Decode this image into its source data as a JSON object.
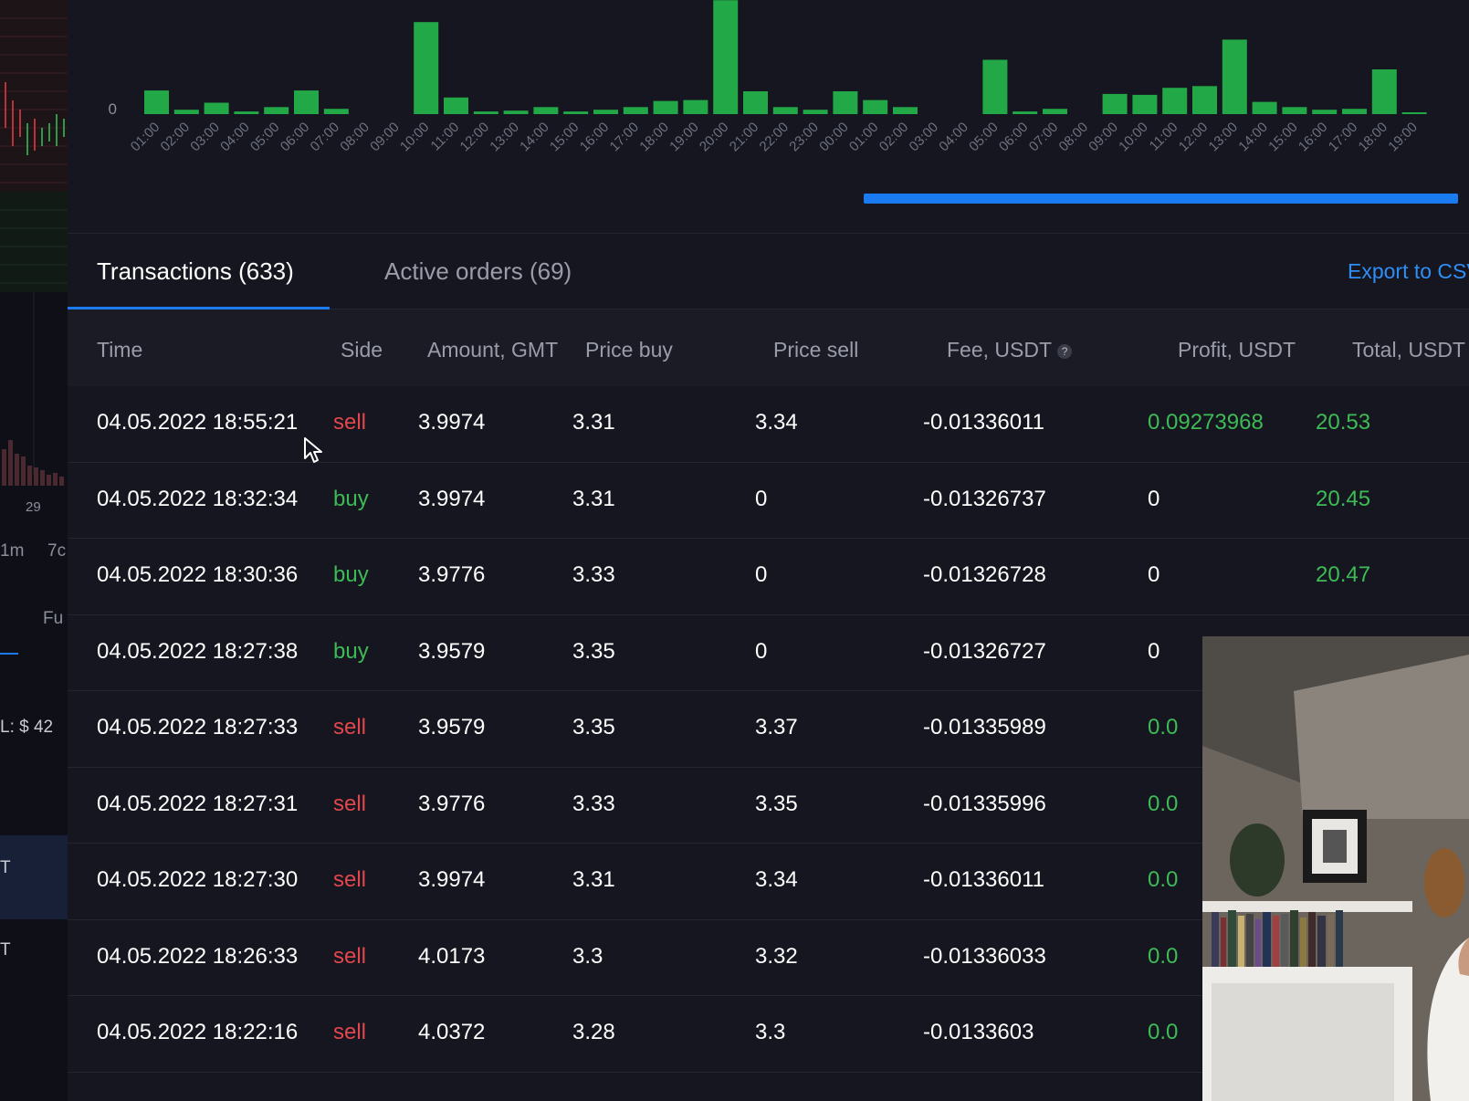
{
  "chart_data": {
    "type": "bar",
    "y_tick": "0",
    "color": "#23a847",
    "categories": [
      "01:00",
      "02:00",
      "03:00",
      "04:00",
      "05:00",
      "06:00",
      "07:00",
      "08:00",
      "09:00",
      "10:00",
      "11:00",
      "12:00",
      "13:00",
      "14:00",
      "15:00",
      "16:00",
      "17:00",
      "18:00",
      "19:00",
      "20:00",
      "21:00",
      "22:00",
      "23:00",
      "00:00",
      "01:00",
      "02:00",
      "03:00",
      "04:00",
      "05:00",
      "06:00",
      "07:00",
      "08:00",
      "09:00",
      "10:00",
      "11:00",
      "12:00",
      "13:00",
      "14:00",
      "15:00",
      "16:00",
      "17:00",
      "18:00",
      "19:00"
    ],
    "values": [
      27,
      5,
      13,
      3,
      8,
      27,
      6,
      0,
      0,
      105,
      19,
      3,
      4,
      8,
      3,
      5,
      8,
      15,
      16,
      130,
      26,
      8,
      5,
      26,
      16,
      8,
      0,
      0,
      62,
      3,
      6,
      0,
      23,
      22,
      30,
      32,
      85,
      14,
      8,
      5,
      6,
      51,
      1
    ]
  },
  "tabs": {
    "transactions": "Transactions (633)",
    "active_orders": "Active orders (69)",
    "export": "Export to CSV"
  },
  "table": {
    "headers": {
      "time": "Time",
      "side": "Side",
      "amount": "Amount, GMT",
      "price_buy": "Price buy",
      "price_sell": "Price sell",
      "fee": "Fee, USDT",
      "profit": "Profit, USDT",
      "total": "Total, USDT"
    },
    "fee_help": "?",
    "rows": [
      {
        "time": "04.05.2022 18:55:21",
        "side": "sell",
        "amount": "3.9974",
        "price_buy": "3.31",
        "price_sell": "3.34",
        "fee": "-0.01336011",
        "profit": "0.09273968",
        "total": "20.53"
      },
      {
        "time": "04.05.2022 18:32:34",
        "side": "buy",
        "amount": "3.9974",
        "price_buy": "3.31",
        "price_sell": "0",
        "fee": "-0.01326737",
        "profit": "0",
        "total": "20.45"
      },
      {
        "time": "04.05.2022 18:30:36",
        "side": "buy",
        "amount": "3.9776",
        "price_buy": "3.33",
        "price_sell": "0",
        "fee": "-0.01326728",
        "profit": "0",
        "total": "20.47"
      },
      {
        "time": "04.05.2022 18:27:38",
        "side": "buy",
        "amount": "3.9579",
        "price_buy": "3.35",
        "price_sell": "0",
        "fee": "-0.01326727",
        "profit": "0",
        "total": ""
      },
      {
        "time": "04.05.2022 18:27:33",
        "side": "sell",
        "amount": "3.9579",
        "price_buy": "3.35",
        "price_sell": "3.37",
        "fee": "-0.01335989",
        "profit": "0.0",
        "total": ""
      },
      {
        "time": "04.05.2022 18:27:31",
        "side": "sell",
        "amount": "3.9776",
        "price_buy": "3.33",
        "price_sell": "3.35",
        "fee": "-0.01335996",
        "profit": "0.0",
        "total": ""
      },
      {
        "time": "04.05.2022 18:27:30",
        "side": "sell",
        "amount": "3.9974",
        "price_buy": "3.31",
        "price_sell": "3.34",
        "fee": "-0.01336011",
        "profit": "0.0",
        "total": ""
      },
      {
        "time": "04.05.2022 18:26:33",
        "side": "sell",
        "amount": "4.0173",
        "price_buy": "3.3",
        "price_sell": "3.32",
        "fee": "-0.01336033",
        "profit": "0.0",
        "total": ""
      },
      {
        "time": "04.05.2022 18:22:16",
        "side": "sell",
        "amount": "4.0372",
        "price_buy": "3.28",
        "price_sell": "3.3",
        "fee": "-0.0133603",
        "profit": "0.0",
        "total": ""
      }
    ]
  },
  "left_panel": {
    "date_label": "29",
    "timeframe_1m": "1m",
    "timeframe_7d": "7c",
    "fu_label": "Fu",
    "pnl_label": "L: $ 42",
    "t1": "T",
    "t2": "T"
  },
  "cursor": "mouse-pointer-icon"
}
